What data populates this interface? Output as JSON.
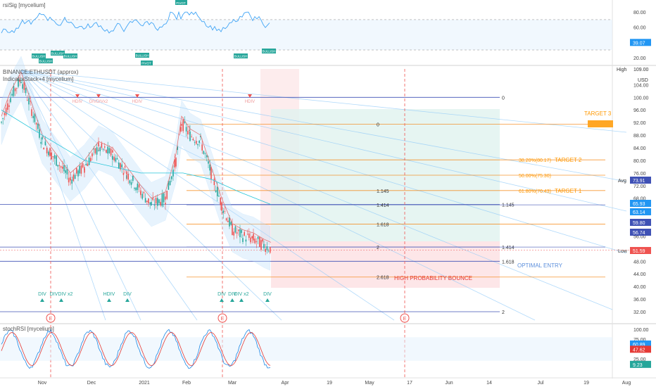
{
  "colors": {
    "up": "#26a69a",
    "down": "#ef5350",
    "fib_orange": "#f57c00",
    "fib_blue": "#3f51b5",
    "fan_blue": "#90caf9",
    "rsi_line": "#42a5f5",
    "target_text": "#ff9800",
    "bounce_text": "#e53935",
    "entry_text": "#5c8fdc",
    "div_teal": "#26a69a",
    "div_pink": "#f8bbd0"
  },
  "rsi_pane": {
    "title": "rsiSig [mycelium]",
    "ticks": [
      "80.00",
      "60.00",
      "40.00",
      "20.00"
    ],
    "current": "39.07",
    "pivot_label": "PIVOT",
    "bullish_label": "BULLISH"
  },
  "main_pane": {
    "title": "BINANCE:ETHUSDT (approx)",
    "indicator": "IndicatorStack+4 [mycelium]",
    "price_ticks": [
      "104.00",
      "100.00",
      "96.00",
      "92.00",
      "88.00",
      "84.00",
      "80.00",
      "76.00",
      "72.00",
      "68.00",
      "64.00",
      "60.00",
      "56.00",
      "52.00",
      "48.00",
      "44.00",
      "40.00",
      "36.00",
      "32.00"
    ],
    "currency": "USD",
    "high_label": "High",
    "high_value": "109.00",
    "avg_label": "Avg",
    "avg_value": "73.91",
    "low_label": "Low",
    "low_value": "51.59",
    "badges": [
      "65.93",
      "63.14",
      "59.80",
      "56.74"
    ],
    "current_price_tag": "51.59"
  },
  "stoch_pane": {
    "title": "stochRSI [mycelium]",
    "ticks": [
      "100.00",
      "75.00",
      "50.00",
      "25.00"
    ],
    "values": [
      "60.89",
      "47.62",
      "9.23"
    ]
  },
  "x_axis": [
    "Nov",
    "Dec",
    "2021",
    "Feb",
    "Mar",
    "Apr",
    "19",
    "May",
    "17",
    "Jun",
    "14",
    "Jul",
    "19",
    "Aug"
  ],
  "annotations": {
    "target3": "TARGET 3",
    "target2": "TARGET 2",
    "target1": "TARGET 1",
    "fib382": "38.20%(80.17)",
    "fib50": "50.00%(75.30)",
    "fib618": "61.80%(70.43)",
    "bounce": "HIGH PROBABILITY BOUNCE",
    "entry": "OPTIMAL ENTRY",
    "div": "DIV",
    "hdiv": "HDIV",
    "div_x2": "DIVDIV x2",
    "earnings": "E"
  },
  "chart_data": {
    "type": "line",
    "x": [
      "Nov",
      "Dec",
      "2021",
      "Feb",
      "Mar"
    ],
    "series": [],
    "fib_levels": [
      {
        "label": "0",
        "price": 109.0
      },
      {
        "label": "1.145",
        "price": 70.5
      },
      {
        "label": "1.414",
        "price": 65.9
      },
      {
        "label": "1.618",
        "price": 59.8
      },
      {
        "label": "2",
        "price": 52.5
      },
      {
        "label": "2.618",
        "price": 43.0
      }
    ],
    "left_fib_levels": [
      {
        "label": "0",
        "price": 100.0
      },
      {
        "label": "1.145",
        "price": 66.0
      },
      {
        "label": "1.414",
        "price": 52.5
      },
      {
        "label": "1.618",
        "price": 48.0
      },
      {
        "label": "2",
        "price": 32.0
      }
    ],
    "targets": [
      {
        "label": "TARGET 3",
        "price": 91.5
      },
      {
        "label": "TARGET 2",
        "price": 80.17
      },
      {
        "label": "TARGET 1",
        "price": 70.43
      }
    ],
    "ylim": [
      30,
      110
    ]
  }
}
